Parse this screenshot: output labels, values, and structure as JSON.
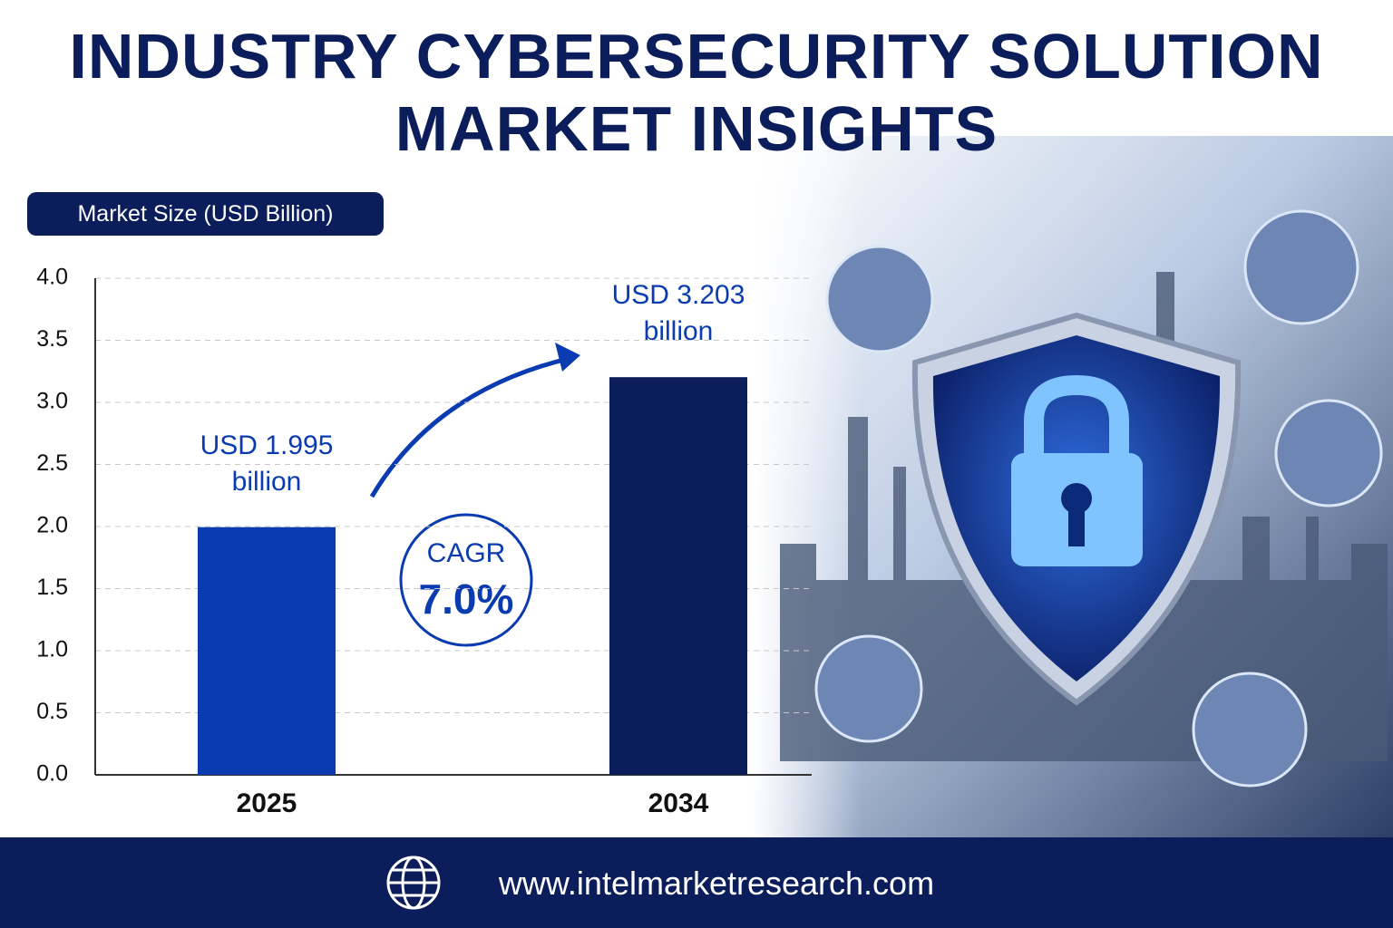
{
  "chart_data": {
    "type": "bar",
    "title": "INDUSTRY CYBERSECURITY SOLUTION MARKET INSIGHTS",
    "y_label": "Market Size (USD Billion)",
    "categories": [
      "2025",
      "2034"
    ],
    "values": [
      1.995,
      3.203
    ],
    "value_labels": [
      "USD 1.995 billion",
      "USD 3.203 billion"
    ],
    "colors": [
      "#0a3bb0",
      "#0b1d5a"
    ],
    "ylim": [
      0,
      4
    ],
    "yticks": [
      {
        "value": 0,
        "label": "0.0"
      },
      0.5,
      {
        "value": 1,
        "label": "1.0"
      },
      1.5,
      {
        "value": 2,
        "label": "2.0"
      },
      2.5,
      {
        "value": 3,
        "label": "3.0"
      },
      3.5,
      {
        "value": 4,
        "label": "4.0"
      }
    ],
    "grid": true,
    "annotation": {
      "label": "CAGR",
      "value": "7.0%"
    },
    "footer": "www.intelmarketresearch.com"
  }
}
